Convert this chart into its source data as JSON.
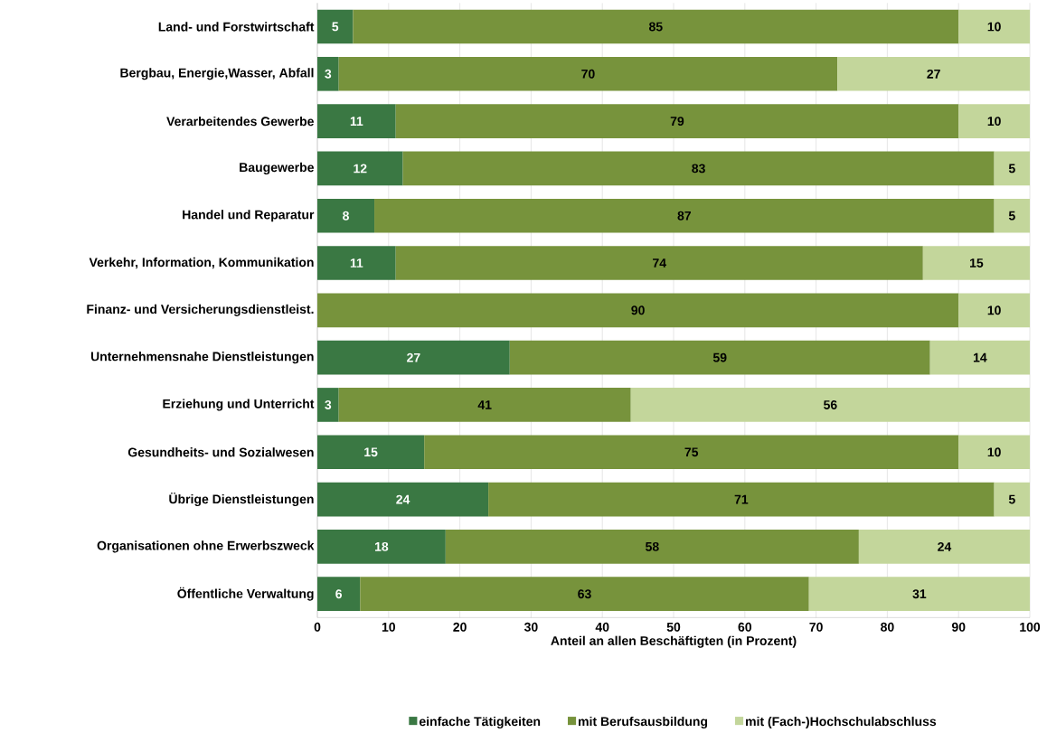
{
  "chart_data": {
    "type": "bar",
    "orientation": "horizontal",
    "stacked": true,
    "categories": [
      "Land- und Forstwirtschaft",
      "Bergbau, Energie,Wasser, Abfall",
      "Verarbeitendes Gewerbe",
      "Baugewerbe",
      "Handel und Reparatur",
      "Verkehr, Information, Kommunikation",
      "Finanz- und Versicherungsdienstleist.",
      "Unternehmensnahe Dienstleistungen",
      "Erziehung und Unterricht",
      "Gesundheits- und Sozialwesen",
      "Übrige Dienstleistungen",
      "Organisationen ohne Erwerbszweck",
      "Öffentliche Verwaltung"
    ],
    "series": [
      {
        "name": "einfache Tätigkeiten",
        "color": "#3a7843",
        "values": [
          5,
          3,
          11,
          12,
          8,
          11,
          null,
          27,
          3,
          15,
          24,
          18,
          6
        ]
      },
      {
        "name": "mit Berufsausbildung",
        "color": "#77933c",
        "values": [
          85,
          70,
          79,
          83,
          87,
          74,
          90,
          59,
          41,
          75,
          71,
          58,
          63
        ]
      },
      {
        "name": "mit (Fach-)Hochschulabschluss",
        "color": "#c3d69b",
        "values": [
          10,
          27,
          10,
          5,
          5,
          15,
          10,
          14,
          56,
          10,
          5,
          24,
          31
        ]
      }
    ],
    "xlabel": "Anteil an allen Beschäftigten (in Prozent)",
    "xlim": [
      0,
      100
    ],
    "xticks": [
      0,
      10,
      20,
      30,
      40,
      50,
      60,
      70,
      80,
      90,
      100
    ],
    "grid": "x",
    "legend": "bottom",
    "data_labels": true
  }
}
